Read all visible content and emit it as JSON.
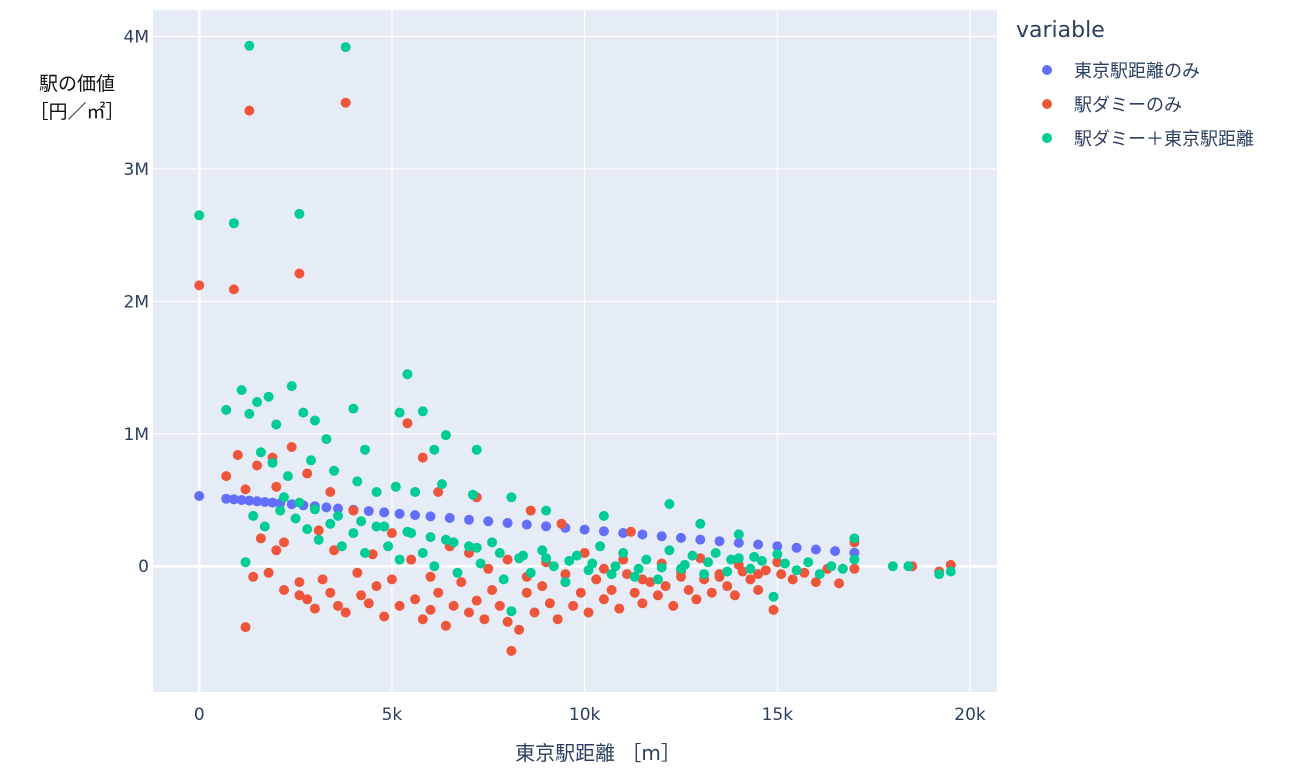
{
  "chart_data": {
    "type": "scatter",
    "xlabel": "東京駅距離 ［m］",
    "ylabel": [
      "駅の価値",
      "［円／㎡］"
    ],
    "xlim": [
      -1200,
      20700
    ],
    "ylim": [
      -950000,
      4200000
    ],
    "x_ticks": [
      {
        "v": 0,
        "label": "0"
      },
      {
        "v": 5000,
        "label": "5k"
      },
      {
        "v": 10000,
        "label": "10k"
      },
      {
        "v": 15000,
        "label": "15k"
      },
      {
        "v": 20000,
        "label": "20k"
      }
    ],
    "y_ticks": [
      {
        "v": 0,
        "label": "0"
      },
      {
        "v": 1000000,
        "label": "1M"
      },
      {
        "v": 2000000,
        "label": "2M"
      },
      {
        "v": 3000000,
        "label": "3M"
      },
      {
        "v": 4000000,
        "label": "4M"
      }
    ],
    "grid": true,
    "legend": {
      "title": "variable",
      "position": "right"
    },
    "background": "#e5ecf6",
    "series": [
      {
        "name": "東京駅距離のみ",
        "color": "#636efa",
        "points": [
          [
            0,
            530000
          ],
          [
            700,
            510000
          ],
          [
            900,
            505000
          ],
          [
            1100,
            500000
          ],
          [
            1300,
            495000
          ],
          [
            1500,
            490000
          ],
          [
            1700,
            485000
          ],
          [
            1900,
            480000
          ],
          [
            2100,
            475000
          ],
          [
            2400,
            468000
          ],
          [
            2700,
            460000
          ],
          [
            3000,
            452000
          ],
          [
            3300,
            444000
          ],
          [
            3600,
            436000
          ],
          [
            4000,
            426000
          ],
          [
            4400,
            416000
          ],
          [
            4800,
            406000
          ],
          [
            5200,
            396000
          ],
          [
            5600,
            386000
          ],
          [
            6000,
            376000
          ],
          [
            6500,
            364000
          ],
          [
            7000,
            351000
          ],
          [
            7500,
            339000
          ],
          [
            8000,
            326000
          ],
          [
            8500,
            314000
          ],
          [
            9000,
            301000
          ],
          [
            9500,
            289000
          ],
          [
            10000,
            276000
          ],
          [
            10500,
            264000
          ],
          [
            11000,
            251000
          ],
          [
            11500,
            239000
          ],
          [
            12000,
            226000
          ],
          [
            12500,
            214000
          ],
          [
            13000,
            201000
          ],
          [
            13500,
            189000
          ],
          [
            14000,
            176000
          ],
          [
            14500,
            164000
          ],
          [
            15000,
            151000
          ],
          [
            15500,
            139000
          ],
          [
            16000,
            126000
          ],
          [
            16500,
            114000
          ],
          [
            17000,
            101000
          ]
        ]
      },
      {
        "name": "駅ダミーのみ",
        "color": "#ef553b",
        "points": [
          [
            0,
            2120000
          ],
          [
            900,
            2090000
          ],
          [
            1300,
            3440000
          ],
          [
            2600,
            2210000
          ],
          [
            3800,
            3500000
          ],
          [
            700,
            680000
          ],
          [
            1000,
            840000
          ],
          [
            1200,
            580000
          ],
          [
            1400,
            -80000
          ],
          [
            1200,
            -460000
          ],
          [
            1600,
            210000
          ],
          [
            1800,
            -50000
          ],
          [
            2000,
            120000
          ],
          [
            2200,
            -180000
          ],
          [
            2400,
            900000
          ],
          [
            2600,
            -120000
          ],
          [
            2800,
            -250000
          ],
          [
            3000,
            -320000
          ],
          [
            3200,
            -100000
          ],
          [
            3400,
            -200000
          ],
          [
            3600,
            -300000
          ],
          [
            3800,
            -350000
          ],
          [
            4000,
            420000
          ],
          [
            4200,
            -220000
          ],
          [
            4400,
            -280000
          ],
          [
            4600,
            -150000
          ],
          [
            4800,
            -380000
          ],
          [
            5000,
            -100000
          ],
          [
            5200,
            -300000
          ],
          [
            5400,
            1080000
          ],
          [
            5600,
            -250000
          ],
          [
            5800,
            -400000
          ],
          [
            6000,
            -330000
          ],
          [
            6200,
            -200000
          ],
          [
            6400,
            -450000
          ],
          [
            6600,
            -300000
          ],
          [
            6800,
            -120000
          ],
          [
            7000,
            -350000
          ],
          [
            7200,
            -260000
          ],
          [
            7400,
            -400000
          ],
          [
            7600,
            -180000
          ],
          [
            7800,
            -300000
          ],
          [
            8000,
            -420000
          ],
          [
            8100,
            -640000
          ],
          [
            8300,
            -480000
          ],
          [
            8500,
            -200000
          ],
          [
            8700,
            -350000
          ],
          [
            8900,
            -150000
          ],
          [
            9100,
            -280000
          ],
          [
            9300,
            -400000
          ],
          [
            9500,
            -120000
          ],
          [
            9700,
            -300000
          ],
          [
            9900,
            -200000
          ],
          [
            10100,
            -350000
          ],
          [
            10300,
            -100000
          ],
          [
            10500,
            -250000
          ],
          [
            10700,
            -180000
          ],
          [
            10900,
            -320000
          ],
          [
            11100,
            -60000
          ],
          [
            11300,
            -200000
          ],
          [
            11500,
            -280000
          ],
          [
            11700,
            -120000
          ],
          [
            11900,
            -220000
          ],
          [
            12100,
            -150000
          ],
          [
            12300,
            -300000
          ],
          [
            12500,
            -80000
          ],
          [
            12700,
            -180000
          ],
          [
            12900,
            -250000
          ],
          [
            13100,
            -100000
          ],
          [
            13300,
            -200000
          ],
          [
            13500,
            -60000
          ],
          [
            13700,
            -150000
          ],
          [
            13900,
            -220000
          ],
          [
            14100,
            -40000
          ],
          [
            14300,
            -100000
          ],
          [
            14500,
            -180000
          ],
          [
            14700,
            -30000
          ],
          [
            14900,
            -330000
          ],
          [
            15100,
            -60000
          ],
          [
            15400,
            -100000
          ],
          [
            15700,
            -50000
          ],
          [
            16000,
            -120000
          ],
          [
            16300,
            -20000
          ],
          [
            16600,
            -130000
          ],
          [
            17000,
            180000
          ],
          [
            17000,
            -20000
          ],
          [
            18500,
            0
          ],
          [
            19200,
            -40000
          ],
          [
            19500,
            10000
          ],
          [
            2000,
            600000
          ],
          [
            2200,
            180000
          ],
          [
            2600,
            -220000
          ],
          [
            3100,
            270000
          ],
          [
            3500,
            120000
          ],
          [
            4100,
            -50000
          ],
          [
            4500,
            90000
          ],
          [
            5000,
            250000
          ],
          [
            5500,
            50000
          ],
          [
            6000,
            -80000
          ],
          [
            6500,
            150000
          ],
          [
            7000,
            100000
          ],
          [
            7500,
            -20000
          ],
          [
            8000,
            50000
          ],
          [
            8500,
            -80000
          ],
          [
            9000,
            30000
          ],
          [
            9500,
            -60000
          ],
          [
            10000,
            100000
          ],
          [
            10500,
            -20000
          ],
          [
            11000,
            50000
          ],
          [
            11500,
            -100000
          ],
          [
            12000,
            20000
          ],
          [
            12500,
            -40000
          ],
          [
            13000,
            60000
          ],
          [
            13500,
            -80000
          ],
          [
            14000,
            10000
          ],
          [
            14500,
            -60000
          ],
          [
            15000,
            30000
          ],
          [
            1500,
            760000
          ],
          [
            1900,
            820000
          ],
          [
            2800,
            700000
          ],
          [
            3400,
            560000
          ],
          [
            5800,
            820000
          ],
          [
            6200,
            560000
          ],
          [
            7200,
            520000
          ],
          [
            8600,
            420000
          ],
          [
            9400,
            320000
          ],
          [
            11200,
            260000
          ]
        ]
      },
      {
        "name": "駅ダミー＋東京駅距離",
        "color": "#00cc96",
        "points": [
          [
            0,
            2650000
          ],
          [
            900,
            2590000
          ],
          [
            1300,
            3930000
          ],
          [
            2600,
            2660000
          ],
          [
            3800,
            3920000
          ],
          [
            700,
            1180000
          ],
          [
            1100,
            1330000
          ],
          [
            1300,
            1150000
          ],
          [
            1500,
            1240000
          ],
          [
            1800,
            1280000
          ],
          [
            2000,
            1070000
          ],
          [
            2400,
            1360000
          ],
          [
            2700,
            1160000
          ],
          [
            3000,
            1100000
          ],
          [
            3300,
            960000
          ],
          [
            4000,
            1190000
          ],
          [
            4300,
            880000
          ],
          [
            5200,
            1160000
          ],
          [
            5400,
            1450000
          ],
          [
            5800,
            1170000
          ],
          [
            6100,
            880000
          ],
          [
            6400,
            990000
          ],
          [
            7200,
            880000
          ],
          [
            1600,
            860000
          ],
          [
            1900,
            780000
          ],
          [
            2300,
            680000
          ],
          [
            2900,
            800000
          ],
          [
            3500,
            720000
          ],
          [
            4100,
            640000
          ],
          [
            4600,
            560000
          ],
          [
            5100,
            600000
          ],
          [
            5600,
            560000
          ],
          [
            6300,
            620000
          ],
          [
            7100,
            540000
          ],
          [
            8100,
            520000
          ],
          [
            9000,
            420000
          ],
          [
            10500,
            380000
          ],
          [
            12200,
            470000
          ],
          [
            13000,
            320000
          ],
          [
            14000,
            240000
          ],
          [
            1200,
            30000
          ],
          [
            1400,
            380000
          ],
          [
            1700,
            300000
          ],
          [
            2100,
            420000
          ],
          [
            2500,
            360000
          ],
          [
            2800,
            280000
          ],
          [
            3100,
            200000
          ],
          [
            3400,
            320000
          ],
          [
            3700,
            150000
          ],
          [
            4000,
            250000
          ],
          [
            4300,
            100000
          ],
          [
            4600,
            300000
          ],
          [
            4900,
            150000
          ],
          [
            5200,
            50000
          ],
          [
            5500,
            250000
          ],
          [
            5800,
            100000
          ],
          [
            6100,
            0
          ],
          [
            6400,
            200000
          ],
          [
            6700,
            -50000
          ],
          [
            7000,
            150000
          ],
          [
            7300,
            20000
          ],
          [
            7600,
            180000
          ],
          [
            7900,
            -100000
          ],
          [
            8100,
            -340000
          ],
          [
            8300,
            60000
          ],
          [
            8600,
            -50000
          ],
          [
            8900,
            120000
          ],
          [
            9200,
            0
          ],
          [
            9500,
            -120000
          ],
          [
            9800,
            80000
          ],
          [
            10100,
            -30000
          ],
          [
            10400,
            150000
          ],
          [
            10700,
            -60000
          ],
          [
            11000,
            100000
          ],
          [
            11300,
            -80000
          ],
          [
            11600,
            50000
          ],
          [
            11900,
            -100000
          ],
          [
            12200,
            120000
          ],
          [
            12500,
            -20000
          ],
          [
            12800,
            80000
          ],
          [
            13100,
            -60000
          ],
          [
            13400,
            100000
          ],
          [
            13700,
            -40000
          ],
          [
            14000,
            60000
          ],
          [
            14300,
            -20000
          ],
          [
            14600,
            40000
          ],
          [
            14900,
            -230000
          ],
          [
            15200,
            20000
          ],
          [
            15500,
            -30000
          ],
          [
            15800,
            30000
          ],
          [
            16100,
            -60000
          ],
          [
            16400,
            0
          ],
          [
            16700,
            -20000
          ],
          [
            17000,
            210000
          ],
          [
            17000,
            50000
          ],
          [
            18000,
            0
          ],
          [
            18400,
            0
          ],
          [
            19200,
            -60000
          ],
          [
            19500,
            -40000
          ],
          [
            2200,
            520000
          ],
          [
            2600,
            480000
          ],
          [
            3000,
            430000
          ],
          [
            3600,
            380000
          ],
          [
            4200,
            340000
          ],
          [
            4800,
            300000
          ],
          [
            5400,
            260000
          ],
          [
            6000,
            220000
          ],
          [
            6600,
            180000
          ],
          [
            7200,
            140000
          ],
          [
            7800,
            100000
          ],
          [
            8400,
            80000
          ],
          [
            9000,
            60000
          ],
          [
            9600,
            40000
          ],
          [
            10200,
            20000
          ],
          [
            10800,
            0
          ],
          [
            11400,
            -20000
          ],
          [
            12000,
            -10000
          ],
          [
            12600,
            10000
          ],
          [
            13200,
            30000
          ],
          [
            13800,
            50000
          ],
          [
            14400,
            70000
          ],
          [
            15000,
            90000
          ]
        ]
      }
    ]
  }
}
